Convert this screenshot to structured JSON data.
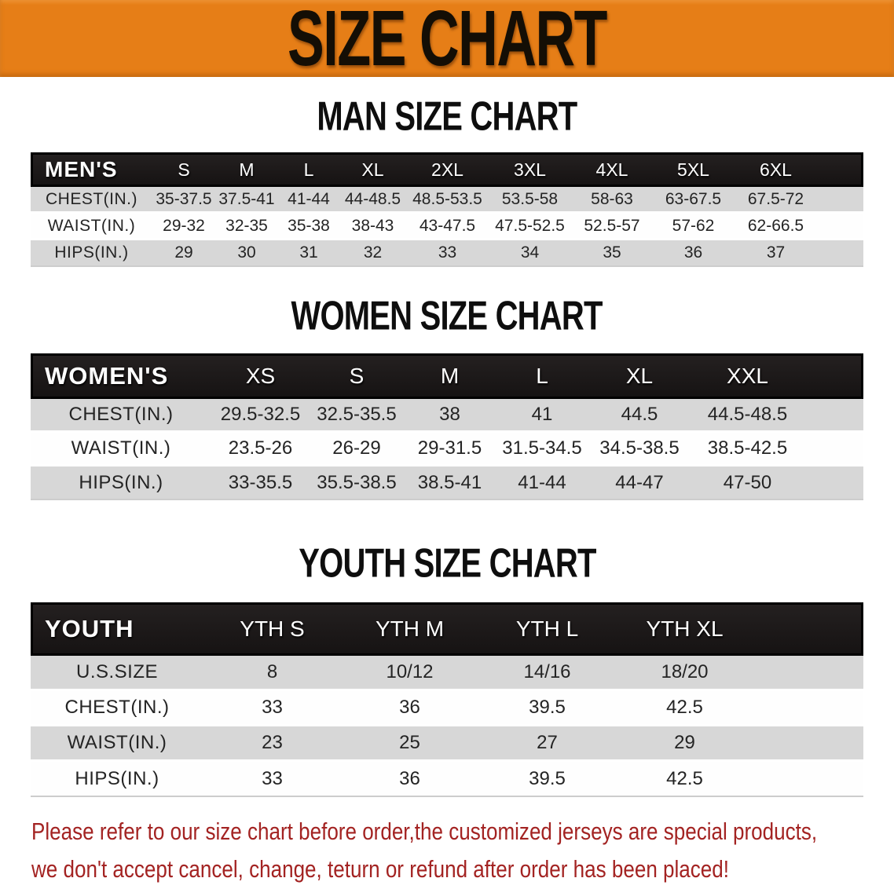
{
  "banner": {
    "title": "SIZE CHART"
  },
  "colors": {
    "banner_bg": "#e67e17",
    "header_bar": "#1b1818",
    "row_gray": "#d7d7d7",
    "disclaimer_red": "#a32322"
  },
  "sections": [
    {
      "heading": "MAN SIZE CHART",
      "corner_label": "MEN'S",
      "columns": [
        "S",
        "M",
        "L",
        "XL",
        "2XL",
        "3XL",
        "4XL",
        "5XL",
        "6XL"
      ],
      "rows": [
        {
          "label": "CHEST(IN.)",
          "values": [
            "35-37.5",
            "37.5-41",
            "41-44",
            "44-48.5",
            "48.5-53.5",
            "53.5-58",
            "58-63",
            "63-67.5",
            "67.5-72"
          ]
        },
        {
          "label": "WAIST(IN.)",
          "values": [
            "29-32",
            "32-35",
            "35-38",
            "38-43",
            "43-47.5",
            "47.5-52.5",
            "52.5-57",
            "57-62",
            "62-66.5"
          ]
        },
        {
          "label": "HIPS(IN.)",
          "values": [
            "29",
            "30",
            "31",
            "32",
            "33",
            "34",
            "35",
            "36",
            "37"
          ]
        }
      ]
    },
    {
      "heading": "WOMEN SIZE CHART",
      "corner_label": "WOMEN'S",
      "columns": [
        "XS",
        "S",
        "M",
        "L",
        "XL",
        "XXL"
      ],
      "rows": [
        {
          "label": "CHEST(IN.)",
          "values": [
            "29.5-32.5",
            "32.5-35.5",
            "38",
            "41",
            "44.5",
            "44.5-48.5"
          ]
        },
        {
          "label": "WAIST(IN.)",
          "values": [
            "23.5-26",
            "26-29",
            "29-31.5",
            "31.5-34.5",
            "34.5-38.5",
            "38.5-42.5"
          ]
        },
        {
          "label": "HIPS(IN.)",
          "values": [
            "33-35.5",
            "35.5-38.5",
            "38.5-41",
            "41-44",
            "44-47",
            "47-50"
          ]
        }
      ]
    },
    {
      "heading": "YOUTH SIZE CHART",
      "corner_label": "YOUTH",
      "columns": [
        "YTH S",
        "YTH M",
        "YTH L",
        "YTH XL"
      ],
      "rows": [
        {
          "label": "U.S.SIZE",
          "values": [
            "8",
            "10/12",
            "14/16",
            "18/20"
          ]
        },
        {
          "label": "CHEST(IN.)",
          "values": [
            "33",
            "36",
            "39.5",
            "42.5"
          ]
        },
        {
          "label": "WAIST(IN.)",
          "values": [
            "23",
            "25",
            "27",
            "29"
          ]
        },
        {
          "label": "HIPS(IN.)",
          "values": [
            "33",
            "36",
            "39.5",
            "42.5"
          ]
        }
      ]
    }
  ],
  "disclaimer": {
    "line1": "Please refer to our size chart before order,the customized jerseys are special products,",
    "line2": "we don't accept cancel, change, teturn or refund after order has been placed!"
  }
}
